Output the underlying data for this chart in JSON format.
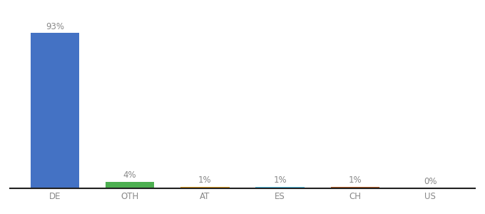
{
  "categories": [
    "DE",
    "OTH",
    "AT",
    "ES",
    "CH",
    "US"
  ],
  "values": [
    93,
    4,
    1,
    1,
    1,
    0
  ],
  "labels": [
    "93%",
    "4%",
    "1%",
    "1%",
    "1%",
    "0%"
  ],
  "bar_colors": [
    "#4472c4",
    "#4caf50",
    "#e8a020",
    "#5bc8f5",
    "#b85c20",
    "#aaaaaa"
  ],
  "background_color": "#ffffff",
  "label_fontsize": 8.5,
  "tick_fontsize": 8.5,
  "bar_width": 0.65,
  "ylim": [
    0,
    100
  ],
  "label_color": "#888888",
  "tick_color": "#888888",
  "spine_color": "#222222"
}
